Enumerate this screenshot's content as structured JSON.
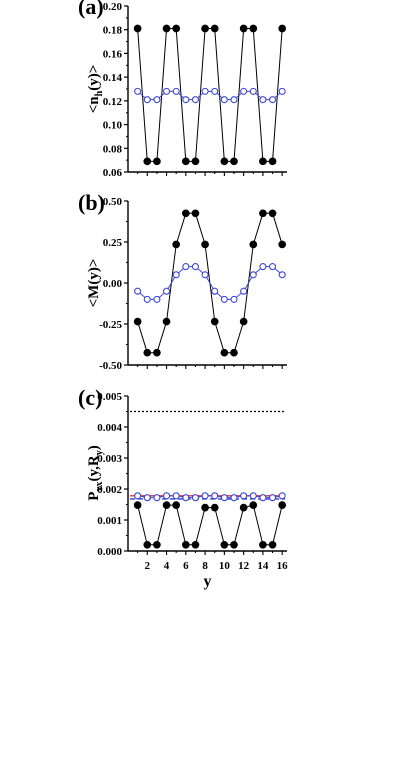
{
  "chart_data": [
    {
      "type": "line",
      "panel_label": "(a)",
      "ylabel": "<n_h(y)>",
      "ylabel_main": "<n",
      "ylabel_sub": "h",
      "ylabel_tail": "(y)>",
      "xlabel": "",
      "xlim": [
        0,
        16.5
      ],
      "ylim": [
        0.06,
        0.2
      ],
      "yticks": [
        0.06,
        0.08,
        0.1,
        0.12,
        0.14,
        0.16,
        0.18,
        0.2
      ],
      "ytick_labels": [
        "0.06",
        "0.08",
        "0.10",
        "0.12",
        "0.14",
        "0.16",
        "0.18",
        "0.20"
      ],
      "xticks": [
        2,
        4,
        6,
        8,
        10,
        12,
        14,
        16
      ],
      "xtick_labels": [],
      "x": [
        1,
        2,
        3,
        4,
        5,
        6,
        7,
        8,
        9,
        10,
        11,
        12,
        13,
        14,
        15,
        16
      ],
      "series": [
        {
          "marker": "filled-circle",
          "color": "#000000",
          "values": [
            0.181,
            0.069,
            0.069,
            0.181,
            0.181,
            0.069,
            0.069,
            0.181,
            0.181,
            0.069,
            0.069,
            0.181,
            0.181,
            0.069,
            0.069,
            0.181
          ]
        },
        {
          "marker": "open-circle",
          "color": "#3b47d6",
          "values": [
            0.128,
            0.121,
            0.121,
            0.128,
            0.128,
            0.121,
            0.121,
            0.128,
            0.128,
            0.121,
            0.121,
            0.128,
            0.128,
            0.121,
            0.121,
            0.128
          ]
        }
      ]
    },
    {
      "type": "line",
      "panel_label": "(b)",
      "ylabel": "<M(y)>",
      "xlabel": "",
      "xlim": [
        0,
        16.5
      ],
      "ylim": [
        -0.5,
        0.5
      ],
      "yticks": [
        -0.5,
        -0.25,
        0.0,
        0.25,
        0.5
      ],
      "ytick_labels": [
        "-0.50",
        "-0.25",
        "0.00",
        "0.25",
        "0.50"
      ],
      "xticks": [
        2,
        4,
        6,
        8,
        10,
        12,
        14,
        16
      ],
      "xtick_labels": [],
      "x": [
        1,
        2,
        3,
        4,
        5,
        6,
        7,
        8,
        9,
        10,
        11,
        12,
        13,
        14,
        15,
        16
      ],
      "series": [
        {
          "marker": "filled-circle",
          "color": "#000000",
          "values": [
            -0.235,
            -0.425,
            -0.425,
            -0.235,
            0.235,
            0.425,
            0.425,
            0.235,
            -0.235,
            -0.425,
            -0.425,
            -0.235,
            0.235,
            0.425,
            0.425,
            0.235
          ]
        },
        {
          "marker": "open-circle",
          "color": "#3b47d6",
          "values": [
            -0.05,
            -0.1,
            -0.1,
            -0.05,
            0.05,
            0.1,
            0.1,
            0.05,
            -0.05,
            -0.1,
            -0.1,
            -0.05,
            0.05,
            0.1,
            0.1,
            0.05
          ]
        }
      ]
    },
    {
      "type": "line",
      "panel_label": "(c)",
      "ylabel": "P_xx(y,R_y)",
      "ylabel_main": "P",
      "ylabel_sub": "xx",
      "ylabel_mid": "(y,R",
      "ylabel_sub2": "y",
      "ylabel_tail": ")",
      "xlabel": "y",
      "xlim": [
        0,
        16.5
      ],
      "ylim": [
        0.0,
        0.005
      ],
      "yticks": [
        0.0,
        0.001,
        0.002,
        0.003,
        0.004,
        0.005
      ],
      "ytick_labels": [
        "0.000",
        "0.001",
        "0.002",
        "0.003",
        "0.004",
        "0.005"
      ],
      "xticks": [
        2,
        4,
        6,
        8,
        10,
        12,
        14,
        16
      ],
      "xtick_labels": [
        "2",
        "4",
        "6",
        "8",
        "10",
        "12",
        "14",
        "16"
      ],
      "x": [
        1,
        2,
        3,
        4,
        5,
        6,
        7,
        8,
        9,
        10,
        11,
        12,
        13,
        14,
        15,
        16
      ],
      "series": [
        {
          "marker": "filled-circle",
          "color": "#000000",
          "values": [
            0.00148,
            0.0002,
            0.0002,
            0.00148,
            0.00148,
            0.0002,
            0.0002,
            0.0014,
            0.0014,
            0.0002,
            0.0002,
            0.0014,
            0.00148,
            0.0002,
            0.0002,
            0.00148
          ]
        },
        {
          "marker": "open-circle",
          "color": "#3b47d6",
          "values": [
            0.00178,
            0.00172,
            0.00172,
            0.00178,
            0.00178,
            0.00172,
            0.00172,
            0.00178,
            0.00178,
            0.00172,
            0.00172,
            0.00178,
            0.00178,
            0.00172,
            0.00172,
            0.00178
          ]
        }
      ],
      "reference_lines": [
        {
          "style": "dotted",
          "color": "#000000",
          "value": 0.0045
        },
        {
          "style": "solid",
          "color": "#e0303a",
          "value": 0.00178
        },
        {
          "style": "dashed",
          "color": "#2a3fd0",
          "value": 0.00168
        }
      ]
    }
  ]
}
